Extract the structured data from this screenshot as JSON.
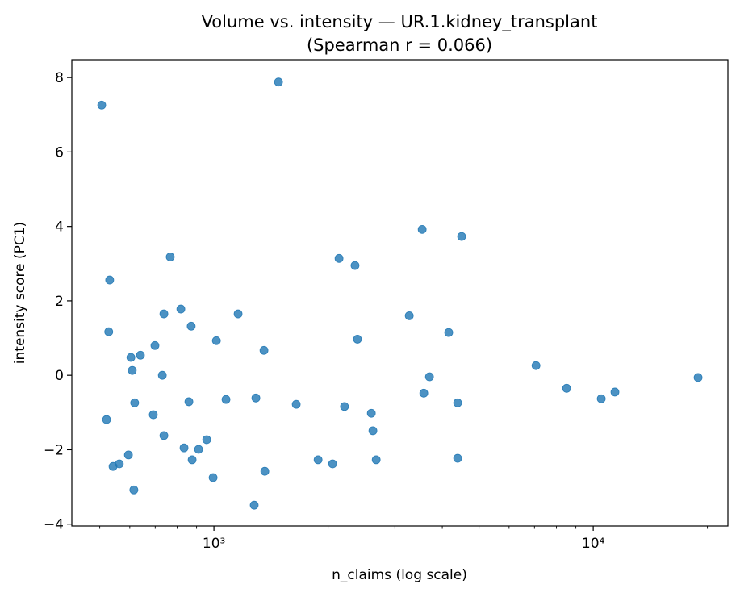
{
  "chart_data": {
    "type": "scatter",
    "title": "Volume vs. intensity — UR.1.kidney_transplant",
    "subtitle": "(Spearman r = 0.066)",
    "xlabel": "n_claims (log scale)",
    "ylabel": "intensity score (PC1)",
    "xscale": "log",
    "xlim": [
      422,
      22650
    ],
    "ylim": [
      -4.05,
      8.48
    ],
    "x_ticks": [
      1000,
      10000
    ],
    "x_tick_labels": [
      "10³",
      "10⁴"
    ],
    "y_ticks": [
      -4,
      -2,
      0,
      2,
      4,
      6,
      8
    ],
    "y_tick_labels": [
      "−4",
      "−2",
      "0",
      "2",
      "4",
      "6",
      "8"
    ],
    "grid": false,
    "marker_color": "#1f77b4",
    "points": [
      [
        506,
        7.26
      ],
      [
        1480,
        7.88
      ],
      [
        531,
        2.56
      ],
      [
        528,
        1.17
      ],
      [
        521,
        -1.19
      ],
      [
        542,
        -2.45
      ],
      [
        563,
        -2.38
      ],
      [
        595,
        -2.14
      ],
      [
        604,
        0.48
      ],
      [
        609,
        0.13
      ],
      [
        615,
        -3.08
      ],
      [
        618,
        -0.74
      ],
      [
        640,
        0.54
      ],
      [
        692,
        -1.06
      ],
      [
        699,
        0.8
      ],
      [
        731,
        0.0
      ],
      [
        738,
        -1.62
      ],
      [
        738,
        1.65
      ],
      [
        767,
        3.18
      ],
      [
        818,
        1.78
      ],
      [
        834,
        -1.95
      ],
      [
        859,
        -0.71
      ],
      [
        871,
        1.32
      ],
      [
        876,
        -2.27
      ],
      [
        911,
        -1.99
      ],
      [
        957,
        -1.73
      ],
      [
        995,
        -2.75
      ],
      [
        1015,
        0.93
      ],
      [
        1076,
        -0.65
      ],
      [
        1158,
        1.65
      ],
      [
        1277,
        -3.49
      ],
      [
        1290,
        -0.61
      ],
      [
        1355,
        0.67
      ],
      [
        1362,
        -2.58
      ],
      [
        1648,
        -0.78
      ],
      [
        1882,
        -2.27
      ],
      [
        2055,
        -2.38
      ],
      [
        2137,
        3.14
      ],
      [
        2209,
        -0.84
      ],
      [
        2355,
        2.95
      ],
      [
        2390,
        0.97
      ],
      [
        2600,
        -1.02
      ],
      [
        2625,
        -1.49
      ],
      [
        2678,
        -2.27
      ],
      [
        3273,
        1.6
      ],
      [
        3540,
        3.92
      ],
      [
        3575,
        -0.48
      ],
      [
        3700,
        -0.04
      ],
      [
        4159,
        1.15
      ],
      [
        4391,
        -0.74
      ],
      [
        4391,
        -2.23
      ],
      [
        4498,
        3.73
      ],
      [
        7065,
        0.26
      ],
      [
        8508,
        -0.35
      ],
      [
        10500,
        -0.63
      ],
      [
        11410,
        -0.45
      ],
      [
        18900,
        -0.06
      ]
    ]
  }
}
